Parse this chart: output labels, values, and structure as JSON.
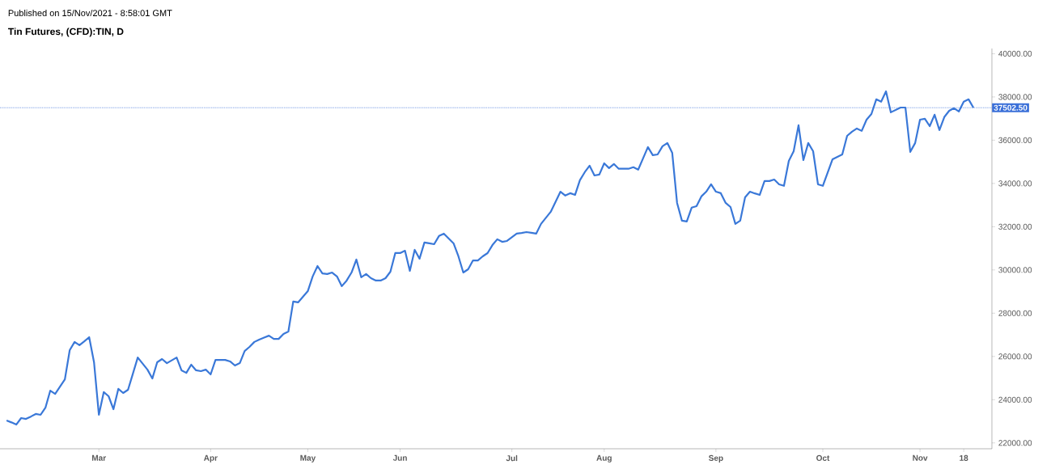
{
  "chart_data": {
    "type": "line",
    "title": "Tin Futures, (CFD):TIN, D",
    "annotations": [
      "Published on 15/Nov/2021 - 8:58:01 GMT"
    ],
    "categories": [
      null,
      null,
      null,
      null,
      null,
      null,
      null,
      null,
      null,
      null,
      null,
      null,
      null,
      null,
      null,
      null,
      null,
      null,
      null,
      "Mar",
      null,
      null,
      null,
      null,
      null,
      null,
      null,
      null,
      null,
      null,
      null,
      null,
      null,
      null,
      null,
      null,
      null,
      null,
      null,
      null,
      null,
      null,
      "Apr",
      null,
      null,
      null,
      null,
      null,
      null,
      null,
      null,
      null,
      null,
      null,
      null,
      null,
      null,
      null,
      null,
      null,
      null,
      null,
      "May",
      null,
      null,
      null,
      null,
      null,
      null,
      null,
      null,
      null,
      null,
      null,
      null,
      null,
      null,
      null,
      null,
      null,
      null,
      "Jun",
      null,
      null,
      null,
      null,
      null,
      null,
      null,
      null,
      null,
      null,
      null,
      null,
      null,
      null,
      null,
      null,
      null,
      null,
      null,
      null,
      null,
      null,
      "Jul",
      null,
      null,
      null,
      null,
      null,
      null,
      null,
      null,
      null,
      null,
      null,
      null,
      null,
      null,
      null,
      null,
      null,
      null,
      "Aug",
      null,
      null,
      null,
      null,
      null,
      null,
      null,
      null,
      null,
      null,
      null,
      null,
      null,
      null,
      null,
      null,
      null,
      null,
      null,
      null,
      null,
      null,
      "Sep",
      null,
      null,
      null,
      null,
      null,
      null,
      null,
      null,
      null,
      null,
      null,
      null,
      null,
      null,
      null,
      null,
      null,
      null,
      null,
      null,
      null,
      "Oct",
      null,
      null,
      null,
      null,
      null,
      null,
      null,
      null,
      null,
      null,
      null,
      null,
      null,
      null,
      null,
      null,
      null,
      null,
      null,
      "Nov",
      null,
      null,
      null,
      null,
      null,
      null,
      null,
      null,
      "18",
      null,
      null
    ],
    "series": [
      {
        "color": "#3a78d8",
        "values": [
          23040,
          22950,
          22850,
          23150,
          23110,
          23220,
          23340,
          23300,
          23630,
          24420,
          24270,
          24600,
          24940,
          26290,
          26670,
          26520,
          26700,
          26890,
          25730,
          23300,
          24350,
          24160,
          23560,
          24500,
          24310,
          24460,
          25200,
          25950,
          25670,
          25390,
          24980,
          25730,
          25880,
          25690,
          25820,
          25950,
          25360,
          25240,
          25620,
          25360,
          25320,
          25390,
          25170,
          25840,
          25840,
          25840,
          25770,
          25580,
          25690,
          26250,
          26440,
          26670,
          26780,
          26870,
          26960,
          26810,
          26810,
          27040,
          27150,
          28540,
          28500,
          28760,
          29020,
          29700,
          30180,
          29840,
          29810,
          29880,
          29700,
          29250,
          29510,
          29880,
          30480,
          29660,
          29810,
          29620,
          29510,
          29510,
          29620,
          29920,
          30780,
          30780,
          30890,
          29960,
          30930,
          30520,
          31270,
          31230,
          31190,
          31570,
          31680,
          31450,
          31230,
          30630,
          29880,
          30030,
          30440,
          30440,
          30630,
          30780,
          31150,
          31420,
          31300,
          31340,
          31510,
          31680,
          31710,
          31750,
          31720,
          31680,
          32130,
          32410,
          32690,
          33150,
          33620,
          33440,
          33550,
          33470,
          34150,
          34520,
          34820,
          34370,
          34410,
          34930,
          34710,
          34900,
          34680,
          34680,
          34680,
          34750,
          34640,
          35160,
          35680,
          35310,
          35340,
          35720,
          35870,
          35420,
          33100,
          32280,
          32240,
          32880,
          32950,
          33400,
          33620,
          33960,
          33620,
          33550,
          33100,
          32910,
          32130,
          32280,
          33360,
          33620,
          33540,
          33470,
          34110,
          34110,
          34180,
          33960,
          33890,
          35040,
          35490,
          36690,
          35080,
          35870,
          35490,
          33960,
          33890,
          34500,
          35120,
          35230,
          35340,
          36200,
          36390,
          36540,
          36430,
          36950,
          37210,
          37890,
          37780,
          38260,
          37290,
          37400,
          37510,
          37510,
          35460,
          35870,
          36950,
          36990,
          36650,
          37180,
          36470,
          37070,
          37360,
          37480,
          37330,
          37780,
          37890,
          37500
        ]
      }
    ],
    "ylim": [
      21730,
      40240
    ],
    "yticks": [
      {
        "value": 22000,
        "label": "22000.00"
      },
      {
        "value": 24000,
        "label": "24000.00"
      },
      {
        "value": 26000,
        "label": "26000.00"
      },
      {
        "value": 28000,
        "label": "28000.00"
      },
      {
        "value": 30000,
        "label": "30000.00"
      },
      {
        "value": 32000,
        "label": "32000.00"
      },
      {
        "value": 34000,
        "label": "34000.00"
      },
      {
        "value": 36000,
        "label": "36000.00"
      },
      {
        "value": 38000,
        "label": "38000.00"
      },
      {
        "value": 40000,
        "label": "40000.00"
      }
    ],
    "ref_lines": [
      {
        "axis": "y",
        "value": 37502.5,
        "label": "37502.50",
        "color": "#3a6fd8",
        "line_style": "dotted"
      }
    ],
    "marker": "none",
    "line_style": "solid",
    "grid": false
  }
}
